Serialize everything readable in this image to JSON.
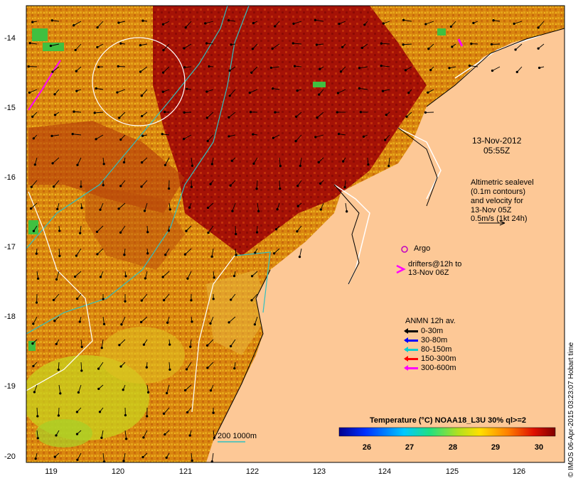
{
  "map": {
    "date": "13-Nov-2012",
    "time": "05:55Z",
    "lat_labels": [
      "-14",
      "-15",
      "-16",
      "-17",
      "-18",
      "-19",
      "-20"
    ],
    "lon_labels": [
      "119",
      "120",
      "121",
      "122",
      "123",
      "124",
      "125",
      "126"
    ],
    "annotation": {
      "line1": "Altimetric sealevel",
      "line2": "(0.1m contours)",
      "line3": "and velocity for",
      "line4": "13-Nov 05Z",
      "line5": "0.5m/s (1kt 24h)"
    },
    "argo_label": "Argo",
    "drifters": {
      "line1": "drifters@12h to",
      "line2": "13-Nov 06Z"
    },
    "anmn": {
      "title": "ANMN 12h av.",
      "items": [
        {
          "label": "0-30m",
          "color": "#000000"
        },
        {
          "label": "30-80m",
          "color": "#0000ff"
        },
        {
          "label": "80-150m",
          "color": "#00d0d0"
        },
        {
          "label": "150-300m",
          "color": "#ff0000"
        },
        {
          "label": "300-600m",
          "color": "#ff00ff"
        }
      ]
    },
    "isobath_label": "200  1000m",
    "colorbar": {
      "title": "Temperature (°C) NOAA18_L3U 30% ql>=2",
      "ticks": [
        "26",
        "27",
        "28",
        "29",
        "30"
      ]
    },
    "credit": "© IMOS 06-Apr-2015 03:23:07 Hobart time",
    "colors": {
      "land": "#fdc896",
      "warm": "#a30d05",
      "mid": "#d56f0d",
      "cool": "#e8a515",
      "cooler": "#c8d21e",
      "green": "#40c040",
      "contour": "#ffffff",
      "isobath": "#30c0c0"
    }
  }
}
